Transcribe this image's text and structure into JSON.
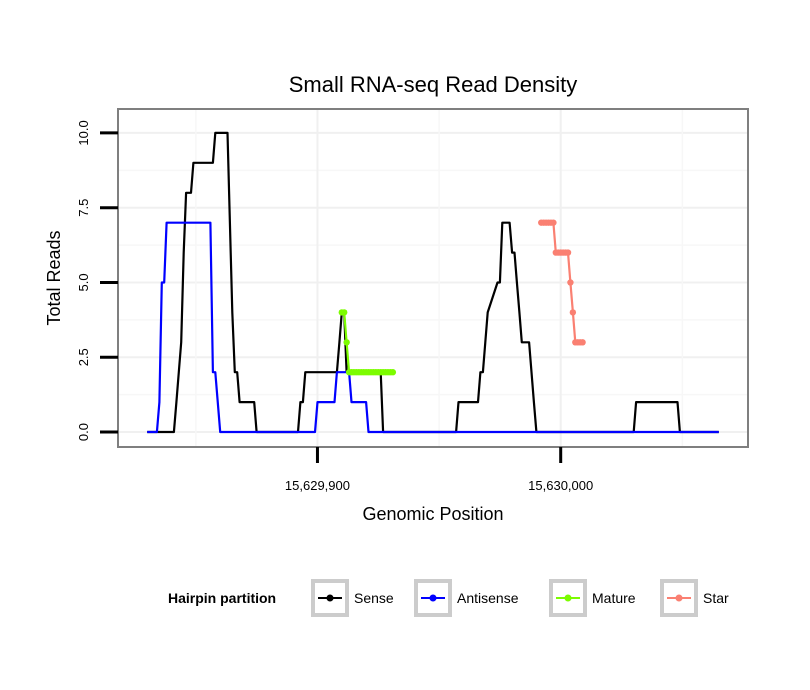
{
  "chart_data": {
    "type": "line",
    "title": "Small RNA-seq Read Density",
    "xlabel": "Genomic Position",
    "ylabel": "Total Reads",
    "xlim": [
      15629818,
      15630077
    ],
    "ylim": [
      -0.5,
      10.8
    ],
    "x_ticks": [
      15629900,
      15630000
    ],
    "x_tick_labels": [
      "15,629,900",
      "15,630,000"
    ],
    "y_ticks": [
      0,
      2.5,
      5,
      7.5,
      10
    ],
    "y_tick_labels": [
      "0.0",
      "2.5",
      "5.0",
      "7.5",
      "10.0"
    ],
    "grid": true,
    "legend_title": "Hairpin partition",
    "legend_position": "bottom",
    "series": [
      {
        "name": "Sense",
        "color": "#000000",
        "marker": false,
        "x": [
          15629830,
          15629841,
          15629842,
          15629843,
          15629844,
          15629845,
          15629846,
          15629848,
          15629849,
          15629852,
          15629853,
          15629857,
          15629858,
          15629863,
          15629864,
          15629865,
          15629866,
          15629867,
          15629868,
          15629874,
          15629875,
          15629892,
          15629893,
          15629894,
          15629895,
          15629897,
          15629908,
          15629909,
          15629910,
          15629911,
          15629912,
          15629926,
          15629927,
          15629957,
          15629958,
          15629966,
          15629967,
          15629968,
          15629969,
          15629970,
          15629974,
          15629975,
          15629976,
          15629979,
          15629980,
          15629981,
          15629982,
          15629983,
          15629984,
          15629985,
          15629986,
          15629987,
          15629988,
          15629989,
          15629990,
          15630011,
          15630012,
          15630030,
          15630031,
          15630048,
          15630049,
          15630065
        ],
        "y": [
          0,
          0,
          1,
          2,
          3,
          6,
          8,
          8,
          9,
          9,
          9,
          9,
          10,
          10,
          7,
          4,
          2,
          2,
          1,
          1,
          0,
          0,
          1,
          1,
          2,
          2,
          2,
          3,
          4,
          4,
          2,
          2,
          0,
          0,
          1,
          1,
          2,
          2,
          3,
          4,
          5,
          5,
          7,
          7,
          6,
          6,
          5,
          4,
          3,
          3,
          3,
          3,
          2,
          1,
          0,
          0,
          0,
          0,
          1,
          1,
          0,
          0
        ]
      },
      {
        "name": "Antisense",
        "color": "#0000ff",
        "marker": false,
        "x": [
          15629830,
          15629834,
          15629835,
          15629836,
          15629837,
          15629838,
          15629856,
          15629857,
          15629858,
          15629860,
          15629899,
          15629900,
          15629907,
          15629908,
          15629913,
          15629914,
          15629920,
          15629921,
          15630065
        ],
        "y": [
          0,
          0,
          1,
          5,
          5,
          7,
          7,
          2,
          2,
          0,
          0,
          1,
          1,
          2,
          2,
          1,
          1,
          0,
          0
        ]
      },
      {
        "name": "Mature",
        "color": "#7cfc00",
        "marker": true,
        "x": [
          15629910,
          15629911,
          15629912,
          15629913,
          15629914,
          15629915,
          15629916,
          15629917,
          15629918,
          15629919,
          15629920,
          15629921,
          15629922,
          15629923,
          15629924,
          15629925,
          15629926,
          15629927,
          15629928,
          15629929,
          15629930,
          15629931
        ],
        "y": [
          4,
          4,
          3,
          2,
          2,
          2,
          2,
          2,
          2,
          2,
          2,
          2,
          2,
          2,
          2,
          2,
          2,
          2,
          2,
          2,
          2,
          2
        ]
      },
      {
        "name": "Star",
        "color": "#fa8072",
        "marker": true,
        "x": [
          15629992,
          15629993,
          15629994,
          15629995,
          15629996,
          15629997,
          15629998,
          15629999,
          15630000,
          15630001,
          15630002,
          15630003,
          15630004,
          15630005,
          15630006,
          15630007,
          15630008,
          15630009
        ],
        "y": [
          7,
          7,
          7,
          7,
          7,
          7,
          6,
          6,
          6,
          6,
          6,
          6,
          5,
          4,
          3,
          3,
          3,
          3
        ]
      }
    ]
  }
}
